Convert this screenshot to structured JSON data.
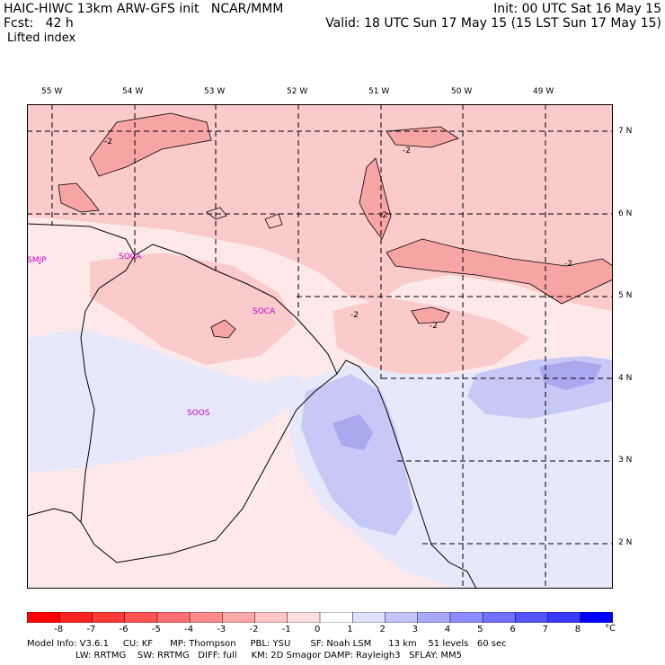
{
  "header": {
    "line1_left": "HAIC-HIWC 13km ARW-GFS init   NCAR/MMM",
    "line1_right": "Init: 00 UTC Sat 16 May 15",
    "line2_left": "Fcst:   42 h",
    "line2_right": "Valid: 18 UTC Sun 17 May 15 (15 LST Sun 17 May 15)",
    "line3_left": "Lifted index"
  },
  "map": {
    "longitude_labels": [
      "55 W",
      "54 W",
      "53 W",
      "52 W",
      "51 W",
      "50 W",
      "49 W"
    ],
    "latitude_labels": [
      "7 N",
      "6 N",
      "5 N",
      "4 N",
      "3 N",
      "2 N"
    ],
    "stations": [
      "SMJP",
      "SOCA",
      "SOCA",
      "SOOS"
    ],
    "contour_labels": [
      "-2",
      "-2",
      "-2",
      "-2",
      "-2",
      "-2"
    ],
    "colors": {
      "pos_light": "#fde9e9",
      "pos_med": "#fbcaca",
      "pos_strong": "#f7a4a4",
      "neg_light": "#e8e8fb",
      "neg_med": "#c8c8f6",
      "neg_strong": "#a9a9f0"
    }
  },
  "colorbar": {
    "unit": "°C",
    "ticks": [
      "-8",
      "-7",
      "-6",
      "-5",
      "-4",
      "-3",
      "-2",
      "-1",
      "0",
      "1",
      "2",
      "3",
      "4",
      "5",
      "6",
      "7",
      "8"
    ],
    "colors": [
      "#ff0000",
      "#ff2020",
      "#ff3a3a",
      "#ff5454",
      "#ff7070",
      "#ff8c8c",
      "#ffa8a8",
      "#ffc4c4",
      "#ffe0e0",
      "#ffffff",
      "#e0e0ff",
      "#c4c4ff",
      "#a8a8ff",
      "#8c8cff",
      "#7070ff",
      "#5454ff",
      "#3a3aff",
      "#0000ff"
    ]
  },
  "footer": {
    "line1": "Model Info: V3.6.1     CU: KF      MP: Thompson     PBL: YSU       SF: Noah LSM      13 km    51 levels   60 sec",
    "line2": "                 LW: RRTMG    SW: RRTMG   DIFF: full     KM: 2D Smagor DAMP: Rayleigh3   SFLAY: MM5"
  }
}
